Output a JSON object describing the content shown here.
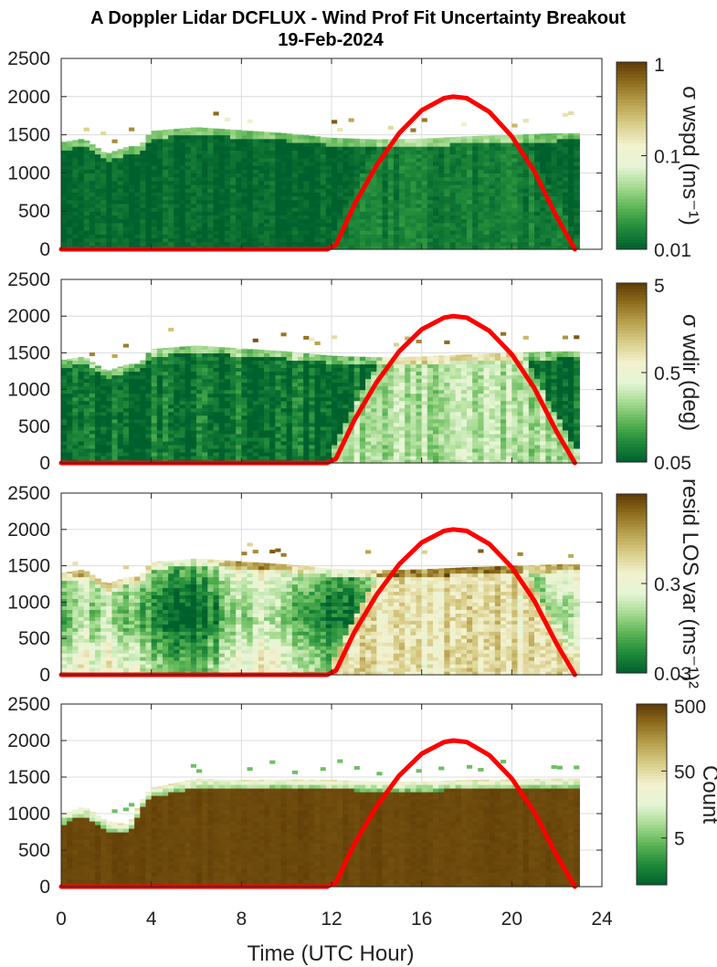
{
  "figure": {
    "title_line1": "A Doppler Lidar DCFLUX - Wind Prof Fit Uncertainty Breakout",
    "title_line2": "19-Feb-2024",
    "xlabel": "Time (UTC Hour)"
  },
  "colors": {
    "axis": "#262626",
    "grid": "#dcdcdc",
    "sun_curve": "#ff0000",
    "colormap": [
      "#00602d",
      "#1f8a3a",
      "#5cb555",
      "#a7db92",
      "#e6f5d6",
      "#f3f1cf",
      "#d9ce8a",
      "#b8a24f",
      "#8f6e1e",
      "#5e3a05"
    ]
  },
  "chart_data": [
    {
      "type": "heatmap",
      "title": "",
      "xlabel": "",
      "ylabel": "",
      "colorbar_label": "σ wspd (ms⁻¹)",
      "colorbar_ticks": [
        "1",
        "0.1",
        "0.01"
      ],
      "colorbar_scale": "log",
      "colorbar_range": [
        0.01,
        1
      ],
      "xlim": [
        0,
        24
      ],
      "ylim": [
        0,
        2500
      ],
      "xticks": [
        0,
        4,
        8,
        12,
        16,
        20,
        24
      ],
      "yticks": [
        0,
        500,
        1000,
        1500,
        2000,
        2500
      ],
      "grid": true,
      "field": {
        "day_level": 0.08,
        "night_level": 0.02,
        "variability": 0.08,
        "night_texture": "uniform-dark"
      },
      "top_height_profile": {
        "x": [
          0,
          1,
          2,
          3,
          3.5,
          4,
          6,
          8,
          10,
          12,
          14,
          16,
          18,
          20,
          22,
          22.8
        ],
        "y": [
          1400,
          1450,
          1250,
          1350,
          1350,
          1550,
          1600,
          1560,
          1520,
          1460,
          1440,
          1450,
          1480,
          1500,
          1520,
          1520
        ]
      },
      "overlay_series": {
        "name": "",
        "x": [
          0,
          11.8,
          12.2,
          13,
          14,
          15,
          16,
          17,
          17.4,
          18,
          19,
          20,
          21,
          22,
          22.8
        ],
        "y": [
          0,
          0,
          60,
          580,
          1100,
          1520,
          1820,
          1980,
          2000,
          1980,
          1800,
          1480,
          1020,
          420,
          0
        ]
      }
    },
    {
      "type": "heatmap",
      "title": "",
      "xlabel": "",
      "ylabel": "",
      "colorbar_label": "σ wdir (deg)",
      "colorbar_ticks": [
        "5",
        "0.5",
        "0.05"
      ],
      "colorbar_scale": "log",
      "colorbar_range": [
        0.05,
        5
      ],
      "xlim": [
        0,
        24
      ],
      "ylim": [
        0,
        2500
      ],
      "xticks": [
        0,
        4,
        8,
        12,
        16,
        20,
        24
      ],
      "yticks": [
        0,
        500,
        1000,
        1500,
        2000,
        2500
      ],
      "grid": true,
      "field": {
        "day_level": 0.35,
        "night_level": 0.05,
        "variability": 0.15,
        "night_texture": "uniform-dark"
      },
      "top_height_profile": {
        "x": [
          0,
          1,
          2,
          3,
          3.5,
          4,
          6,
          8,
          10,
          12,
          14,
          16,
          18,
          20,
          22,
          22.8
        ],
        "y": [
          1400,
          1450,
          1250,
          1350,
          1350,
          1550,
          1600,
          1560,
          1520,
          1460,
          1440,
          1450,
          1480,
          1500,
          1520,
          1520
        ]
      },
      "overlay_series": {
        "name": "",
        "x": [
          0,
          11.8,
          12.2,
          13,
          14,
          15,
          16,
          17,
          17.4,
          18,
          19,
          20,
          21,
          22,
          22.8
        ],
        "y": [
          0,
          0,
          60,
          580,
          1100,
          1520,
          1820,
          1980,
          2000,
          1980,
          1800,
          1480,
          1020,
          420,
          0
        ]
      }
    },
    {
      "type": "heatmap",
      "title": "",
      "xlabel": "",
      "ylabel": "",
      "colorbar_label": "resid LOS var (ms⁻¹)²",
      "colorbar_ticks": [
        "0.3",
        "0.03"
      ],
      "colorbar_scale": "log",
      "colorbar_range": [
        0.03,
        3
      ],
      "xlim": [
        0,
        24
      ],
      "ylim": [
        0,
        2500
      ],
      "xticks": [
        0,
        4,
        8,
        12,
        16,
        20,
        24
      ],
      "yticks": [
        0,
        500,
        1000,
        1500,
        2000,
        2500
      ],
      "grid": true,
      "field": {
        "day_level": 0.6,
        "night_level": 0.28,
        "variability": 0.18,
        "night_texture": "mixed"
      },
      "top_height_profile": {
        "x": [
          0,
          1,
          2,
          3,
          3.5,
          4,
          6,
          8,
          10,
          12,
          14,
          16,
          18,
          20,
          22,
          22.8
        ],
        "y": [
          1400,
          1450,
          1250,
          1350,
          1350,
          1550,
          1600,
          1560,
          1520,
          1460,
          1440,
          1450,
          1480,
          1500,
          1520,
          1520
        ]
      },
      "overlay_series": {
        "name": "",
        "x": [
          0,
          11.8,
          12.2,
          13,
          14,
          15,
          16,
          17,
          17.4,
          18,
          19,
          20,
          21,
          22,
          22.8
        ],
        "y": [
          0,
          0,
          60,
          580,
          1100,
          1520,
          1820,
          1980,
          2000,
          1980,
          1800,
          1480,
          1020,
          420,
          0
        ]
      }
    },
    {
      "type": "heatmap",
      "title": "",
      "xlabel": "",
      "ylabel": "",
      "colorbar_label": "Count",
      "colorbar_ticks": [
        "500",
        "50",
        "5"
      ],
      "colorbar_scale": "log",
      "colorbar_range": [
        1,
        500
      ],
      "xlim": [
        0,
        24
      ],
      "ylim": [
        0,
        2500
      ],
      "xticks": [
        0,
        4,
        8,
        12,
        16,
        20,
        24
      ],
      "xticklabels_shown": true,
      "yticks": [
        0,
        500,
        1000,
        1500,
        2000,
        2500
      ],
      "grid": true,
      "field": {
        "day_level": 0.97,
        "night_level": 0.97,
        "variability": 0.02,
        "night_texture": "saturated"
      },
      "top_height_profile": {
        "x": [
          0,
          1,
          2,
          3,
          3.5,
          4,
          6,
          8,
          10,
          12,
          14,
          16,
          18,
          20,
          22,
          22.8
        ],
        "y": [
          980,
          1100,
          900,
          850,
          1150,
          1350,
          1480,
          1460,
          1470,
          1460,
          1440,
          1440,
          1460,
          1470,
          1480,
          1480
        ]
      },
      "overlay_series": {
        "name": "",
        "x": [
          0,
          11.8,
          12.2,
          13,
          14,
          15,
          16,
          17,
          17.4,
          18,
          19,
          20,
          21,
          22,
          22.8
        ],
        "y": [
          0,
          0,
          60,
          580,
          1100,
          1520,
          1820,
          1980,
          2000,
          1980,
          1800,
          1480,
          1020,
          420,
          0
        ]
      }
    }
  ]
}
